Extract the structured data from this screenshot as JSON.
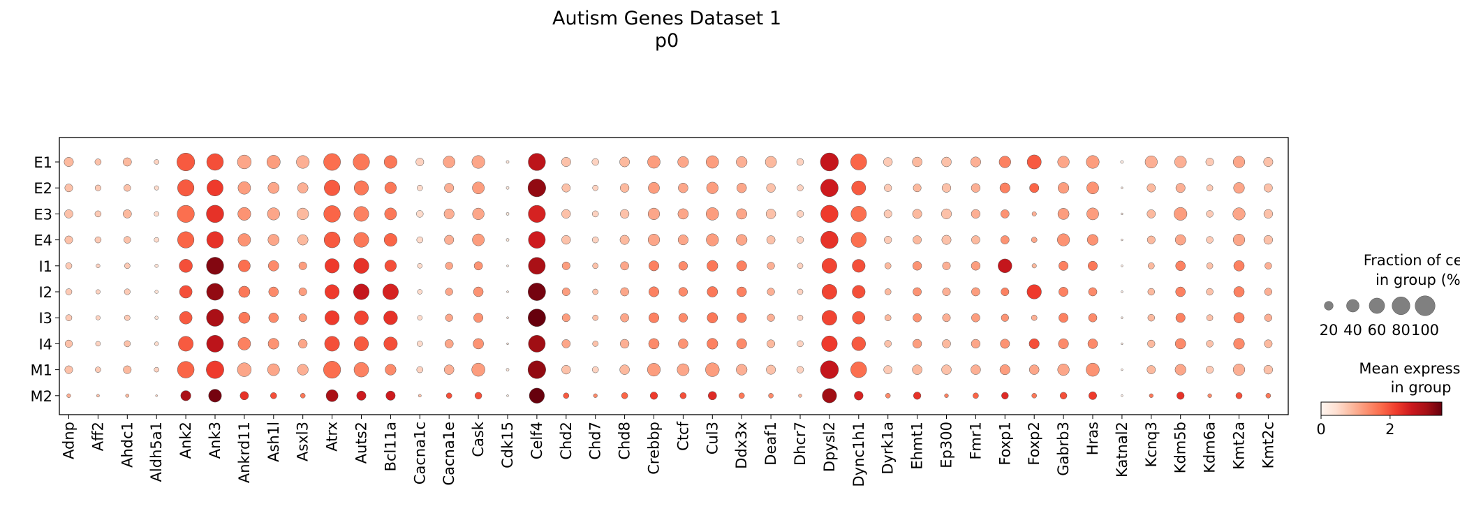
{
  "chart_data": {
    "type": "dotplot",
    "title": "Autism Genes Dataset 1",
    "subtitle": "p0",
    "genes": [
      "Adnp",
      "Aff2",
      "Ahdc1",
      "Aldh5a1",
      "Ank2",
      "Ank3",
      "Ankrd11",
      "Ash1l",
      "Asxl3",
      "Atrx",
      "Auts2",
      "Bcl11a",
      "Cacna1c",
      "Cacna1e",
      "Cask",
      "Cdk15",
      "Celf4",
      "Chd2",
      "Chd7",
      "Chd8",
      "Crebbp",
      "Ctcf",
      "Cul3",
      "Ddx3x",
      "Deaf1",
      "Dhcr7",
      "Dpysl2",
      "Dync1h1",
      "Dyrk1a",
      "Ehmt1",
      "Ep300",
      "Fmr1",
      "Foxp1",
      "Foxp2",
      "Gabrb3",
      "Hras",
      "Katnal2",
      "Kcnq3",
      "Kdm5b",
      "Kdm6a",
      "Kmt2a",
      "Kmt2c"
    ],
    "groups": [
      "E1",
      "E2",
      "E3",
      "E4",
      "I1",
      "I2",
      "I3",
      "I4",
      "M1",
      "M2"
    ],
    "fraction_pct": [
      [
        22,
        10,
        18,
        6,
        80,
        70,
        48,
        45,
        42,
        72,
        68,
        42,
        16,
        35,
        42,
        2,
        75,
        22,
        12,
        25,
        40,
        30,
        40,
        30,
        32,
        12,
        82,
        65,
        20,
        24,
        24,
        26,
        34,
        50,
        34,
        42,
        2,
        38,
        35,
        16,
        34,
        22
      ],
      [
        16,
        9,
        12,
        5,
        68,
        66,
        40,
        32,
        28,
        62,
        52,
        34,
        8,
        22,
        36,
        2,
        80,
        18,
        8,
        20,
        32,
        24,
        34,
        24,
        20,
        10,
        78,
        50,
        14,
        16,
        20,
        20,
        26,
        22,
        30,
        36,
        1,
        18,
        22,
        10,
        30,
        18
      ],
      [
        18,
        10,
        18,
        6,
        74,
        76,
        42,
        38,
        34,
        70,
        56,
        36,
        12,
        26,
        34,
        2,
        74,
        20,
        10,
        20,
        34,
        28,
        40,
        28,
        24,
        12,
        76,
        60,
        16,
        22,
        26,
        20,
        18,
        5,
        32,
        36,
        1,
        18,
        42,
        12,
        38,
        20
      ],
      [
        16,
        10,
        12,
        6,
        68,
        70,
        40,
        32,
        28,
        64,
        56,
        42,
        10,
        22,
        36,
        2,
        72,
        20,
        10,
        22,
        34,
        26,
        38,
        30,
        18,
        12,
        76,
        58,
        14,
        18,
        22,
        18,
        18,
        8,
        38,
        30,
        1,
        16,
        28,
        12,
        34,
        20
      ],
      [
        10,
        4,
        8,
        3,
        44,
        75,
        36,
        28,
        16,
        52,
        58,
        34,
        6,
        14,
        18,
        1,
        72,
        16,
        8,
        18,
        26,
        20,
        30,
        26,
        14,
        8,
        56,
        42,
        10,
        20,
        16,
        20,
        48,
        5,
        22,
        22,
        1,
        10,
        24,
        10,
        28,
        12
      ],
      [
        10,
        5,
        9,
        3,
        40,
        72,
        32,
        24,
        16,
        52,
        62,
        62,
        6,
        14,
        24,
        1,
        78,
        16,
        8,
        18,
        26,
        20,
        28,
        24,
        14,
        8,
        56,
        42,
        10,
        18,
        16,
        18,
        16,
        52,
        22,
        18,
        1,
        12,
        24,
        12,
        28,
        14
      ],
      [
        10,
        5,
        8,
        3,
        40,
        74,
        32,
        24,
        16,
        52,
        50,
        48,
        6,
        14,
        22,
        1,
        78,
        16,
        8,
        18,
        26,
        20,
        28,
        24,
        14,
        8,
        56,
        40,
        10,
        18,
        16,
        18,
        14,
        8,
        22,
        18,
        1,
        12,
        22,
        10,
        28,
        14
      ],
      [
        14,
        6,
        10,
        4,
        56,
        72,
        40,
        30,
        20,
        56,
        52,
        46,
        8,
        18,
        28,
        1,
        72,
        18,
        8,
        20,
        28,
        24,
        30,
        26,
        16,
        10,
        62,
        48,
        12,
        20,
        18,
        20,
        22,
        26,
        26,
        24,
        1,
        14,
        28,
        12,
        30,
        16
      ],
      [
        16,
        8,
        16,
        6,
        70,
        78,
        48,
        36,
        30,
        74,
        54,
        30,
        10,
        24,
        44,
        2,
        80,
        20,
        10,
        24,
        42,
        36,
        48,
        30,
        22,
        12,
        82,
        64,
        18,
        24,
        24,
        24,
        26,
        24,
        34,
        44,
        1,
        18,
        30,
        14,
        34,
        20
      ],
      [
        4,
        2,
        3,
        1,
        26,
        42,
        18,
        10,
        6,
        36,
        22,
        22,
        2,
        8,
        12,
        1,
        58,
        8,
        4,
        10,
        14,
        10,
        18,
        8,
        6,
        3,
        52,
        20,
        6,
        14,
        4,
        8,
        12,
        6,
        12,
        16,
        1,
        4,
        14,
        4,
        10,
        6
      ]
    ],
    "mean_expression": [
      [
        0.9,
        0.8,
        0.9,
        0.6,
        1.9,
        2.0,
        1.1,
        1.2,
        1.0,
        1.7,
        1.6,
        1.6,
        0.6,
        1.1,
        1.1,
        0.3,
        2.8,
        0.8,
        0.6,
        0.9,
        1.2,
        1.1,
        1.2,
        1.0,
        0.9,
        0.6,
        2.7,
        1.8,
        0.7,
        0.9,
        0.8,
        1.0,
        1.5,
        1.9,
        1.1,
        1.2,
        0.2,
        1.0,
        1.0,
        0.7,
        1.1,
        0.8
      ],
      [
        0.8,
        0.7,
        0.8,
        0.5,
        1.9,
        2.2,
        1.2,
        1.1,
        1.0,
        1.9,
        1.6,
        1.6,
        0.5,
        1.0,
        1.2,
        0.3,
        3.2,
        0.8,
        0.6,
        0.9,
        1.2,
        1.1,
        1.2,
        1.1,
        0.8,
        0.6,
        2.6,
        1.9,
        0.7,
        0.9,
        0.8,
        1.0,
        1.5,
        1.8,
        1.2,
        1.3,
        0.2,
        0.9,
        1.0,
        0.7,
        1.1,
        0.8
      ],
      [
        0.8,
        0.7,
        0.9,
        0.5,
        1.7,
        2.3,
        1.3,
        1.1,
        0.9,
        1.8,
        1.5,
        1.6,
        0.5,
        1.0,
        1.1,
        0.3,
        2.5,
        0.8,
        0.6,
        0.8,
        1.1,
        1.1,
        1.2,
        1.1,
        0.8,
        0.6,
        2.2,
        1.7,
        0.7,
        0.9,
        0.8,
        1.0,
        1.3,
        1.0,
        1.2,
        1.2,
        0.2,
        0.9,
        1.2,
        0.7,
        1.1,
        0.8
      ],
      [
        0.8,
        0.7,
        0.8,
        0.5,
        1.8,
        2.3,
        1.3,
        1.1,
        0.9,
        1.9,
        1.6,
        1.8,
        0.5,
        1.0,
        1.2,
        0.3,
        2.6,
        0.8,
        0.6,
        0.9,
        1.1,
        1.1,
        1.2,
        1.1,
        0.8,
        0.6,
        2.3,
        1.7,
        0.7,
        0.9,
        0.8,
        0.9,
        1.3,
        1.1,
        1.3,
        1.3,
        0.2,
        0.9,
        1.1,
        0.7,
        1.1,
        0.8
      ],
      [
        0.7,
        0.6,
        0.7,
        0.4,
        2.0,
        3.3,
        1.7,
        1.4,
        1.2,
        2.2,
        2.3,
        2.0,
        0.5,
        1.1,
        1.3,
        0.3,
        3.0,
        1.2,
        0.8,
        1.1,
        1.5,
        1.4,
        1.6,
        1.5,
        1.0,
        0.6,
        2.1,
        2.0,
        0.9,
        1.3,
        1.0,
        1.2,
        2.7,
        0.9,
        1.5,
        1.6,
        0.2,
        0.9,
        1.5,
        0.8,
        1.5,
        1.0
      ],
      [
        0.7,
        0.6,
        0.7,
        0.4,
        2.0,
        3.2,
        1.6,
        1.4,
        1.2,
        2.2,
        2.7,
        2.5,
        0.5,
        1.1,
        1.3,
        0.3,
        3.4,
        1.2,
        0.8,
        1.1,
        1.5,
        1.4,
        1.6,
        1.5,
        1.0,
        0.6,
        2.1,
        2.0,
        0.9,
        1.3,
        1.0,
        1.2,
        1.5,
        2.2,
        1.5,
        1.4,
        0.2,
        0.9,
        1.5,
        0.8,
        1.5,
        1.0
      ],
      [
        0.7,
        0.6,
        0.7,
        0.4,
        1.9,
        3.0,
        1.6,
        1.4,
        1.2,
        2.2,
        2.1,
        2.3,
        0.5,
        1.1,
        1.3,
        0.3,
        3.6,
        1.2,
        0.8,
        1.1,
        1.5,
        1.4,
        1.6,
        1.5,
        1.0,
        0.6,
        2.1,
        1.9,
        0.9,
        1.3,
        1.0,
        1.2,
        1.3,
        1.0,
        1.5,
        1.4,
        0.2,
        0.9,
        1.5,
        0.8,
        1.5,
        1.0
      ],
      [
        0.8,
        0.6,
        0.8,
        0.5,
        1.9,
        2.8,
        1.5,
        1.3,
        1.1,
        2.0,
        1.9,
        2.0,
        0.5,
        1.1,
        1.3,
        0.3,
        3.1,
        1.1,
        0.8,
        1.0,
        1.4,
        1.3,
        1.5,
        1.4,
        0.9,
        0.6,
        2.2,
        1.9,
        0.8,
        1.2,
        0.9,
        1.1,
        1.3,
        2.0,
        1.4,
        1.4,
        0.2,
        0.9,
        1.4,
        0.8,
        1.4,
        0.9
      ],
      [
        0.8,
        0.7,
        0.9,
        0.6,
        1.8,
        2.2,
        1.1,
        1.1,
        1.0,
        1.7,
        1.5,
        1.4,
        0.6,
        1.0,
        1.2,
        0.3,
        3.2,
        0.8,
        0.6,
        0.9,
        1.2,
        1.1,
        1.2,
        1.0,
        0.8,
        0.6,
        2.7,
        1.7,
        0.7,
        0.9,
        0.8,
        1.0,
        1.2,
        1.1,
        1.1,
        1.3,
        0.2,
        0.9,
        1.1,
        0.7,
        1.0,
        0.8
      ],
      [
        1.0,
        0.8,
        0.9,
        0.6,
        3.0,
        3.4,
        2.3,
        2.0,
        1.6,
        3.0,
        2.6,
        2.6,
        0.8,
        2.0,
        2.0,
        0.3,
        3.5,
        1.9,
        1.4,
        1.8,
        2.2,
        2.0,
        2.4,
        1.6,
        1.4,
        0.9,
        3.1,
        2.5,
        1.4,
        2.3,
        1.5,
        1.8,
        2.4,
        1.6,
        2.0,
        2.2,
        0.2,
        1.6,
        2.3,
        1.4,
        2.0,
        1.6
      ]
    ],
    "size_legend": {
      "title_line1": "Fraction of cells",
      "title_line2": "in group (%)",
      "values": [
        20,
        40,
        60,
        80,
        100
      ],
      "labels": [
        "20",
        "40",
        "60",
        "80",
        "100"
      ]
    },
    "color_legend": {
      "title_line1": "Mean expression",
      "title_line2": "in group",
      "range": [
        0,
        3.5
      ],
      "ticks": [
        0,
        2
      ],
      "tick_labels": [
        "0",
        "2"
      ],
      "colormap": "Reds",
      "stops": [
        "#fff5f0",
        "#fee0d2",
        "#fcbba1",
        "#fc9272",
        "#fb6a4a",
        "#ef3b2c",
        "#cb181d",
        "#a50f15",
        "#67000d"
      ]
    },
    "dot_edge_color": "#555555"
  }
}
